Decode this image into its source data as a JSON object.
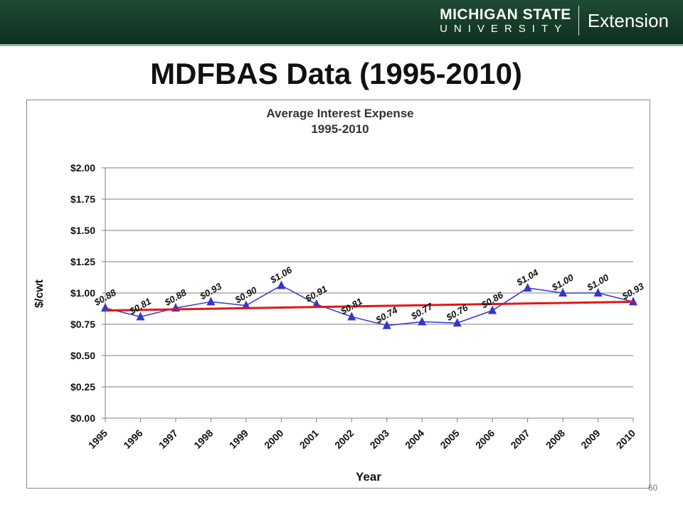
{
  "header": {
    "brand_line1": "MICHIGAN STATE",
    "brand_line2": "UNIVERSITY",
    "brand_extension": "Extension"
  },
  "slide": {
    "title": "MDFBAS Data (1995-2010)",
    "page_number": "60"
  },
  "chart_data": {
    "type": "line",
    "title": "Average Interest Expense",
    "subtitle": "1995-2010",
    "xlabel": "Year",
    "ylabel": "$/cwt",
    "categories": [
      "1995",
      "1996",
      "1997",
      "1998",
      "1999",
      "2000",
      "2001",
      "2002",
      "2003",
      "2004",
      "2005",
      "2006",
      "2007",
      "2008",
      "2009",
      "2010"
    ],
    "series": [
      {
        "values": [
          0.88,
          0.81,
          0.88,
          0.93,
          0.9,
          1.06,
          0.91,
          0.81,
          0.74,
          0.77,
          0.76,
          0.86,
          1.04,
          1.0,
          1.0,
          0.93
        ],
        "data_labels": [
          "$0.88",
          "$0.81",
          "$0.88",
          "$0.93",
          "$0.90",
          "$1.06",
          "$0.91",
          "$0.81",
          "$0.74",
          "$0.77",
          "$0.76",
          "$0.86",
          "$1.04",
          "$1.00",
          "$1.00",
          "$0.93"
        ],
        "color": "#3636c8",
        "marker": "triangle"
      }
    ],
    "trendline": {
      "start": 0.86,
      "end": 0.93,
      "color": "#e01818"
    },
    "ylim": [
      0,
      2
    ],
    "yticks": [
      0,
      0.25,
      0.5,
      0.75,
      1.0,
      1.25,
      1.5,
      1.75,
      2.0
    ],
    "ytick_labels": [
      "$0.00",
      "$0.25",
      "$0.50",
      "$0.75",
      "$1.00",
      "$1.25",
      "$1.50",
      "$1.75",
      "$2.00"
    ],
    "grid": true,
    "legend": "none"
  }
}
